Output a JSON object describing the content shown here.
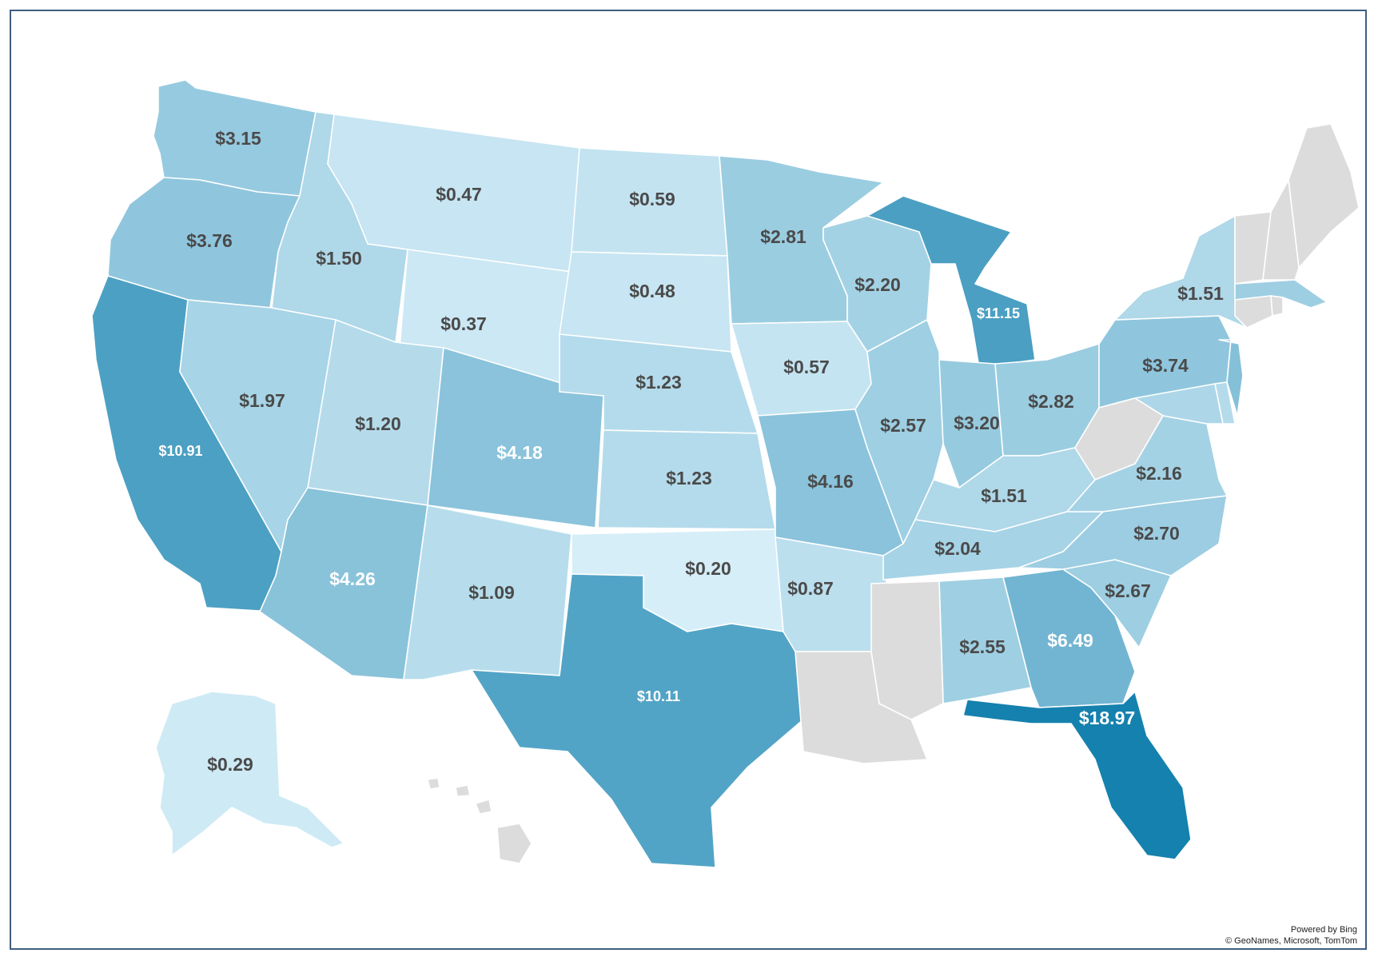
{
  "attribution": {
    "line1": "Powered by Bing",
    "line2": "© GeoNames, Microsoft, TomTom"
  },
  "colors": {
    "no_data": "#dcdcdc",
    "scale_low": "#d6eef8",
    "scale_high": "#1581ae",
    "label_dark": "#4a4a4a",
    "label_light": "#ffffff",
    "border": "#3f5f7f"
  },
  "chart_data": {
    "type": "choropleth",
    "region": "United States",
    "values_unit": "$",
    "states": [
      {
        "state": "WA",
        "label": "$3.15",
        "value": 3.15
      },
      {
        "state": "OR",
        "label": "$3.76",
        "value": 3.76
      },
      {
        "state": "CA",
        "label": "$10.91",
        "value": 10.91
      },
      {
        "state": "ID",
        "label": "$1.50",
        "value": 1.5
      },
      {
        "state": "NV",
        "label": "$1.97",
        "value": 1.97
      },
      {
        "state": "MT",
        "label": "$0.47",
        "value": 0.47
      },
      {
        "state": "WY",
        "label": "$0.37",
        "value": 0.37
      },
      {
        "state": "UT",
        "label": "$1.20",
        "value": 1.2
      },
      {
        "state": "AZ",
        "label": "$4.26",
        "value": 4.26
      },
      {
        "state": "CO",
        "label": "$4.18",
        "value": 4.18
      },
      {
        "state": "NM",
        "label": "$1.09",
        "value": 1.09
      },
      {
        "state": "ND",
        "label": "$0.59",
        "value": 0.59
      },
      {
        "state": "SD",
        "label": "$0.48",
        "value": 0.48
      },
      {
        "state": "NE",
        "label": "$1.23",
        "value": 1.23
      },
      {
        "state": "KS",
        "label": "$1.23",
        "value": 1.23
      },
      {
        "state": "OK",
        "label": "$0.20",
        "value": 0.2
      },
      {
        "state": "TX",
        "label": "$10.11",
        "value": 10.11
      },
      {
        "state": "MN",
        "label": "$2.81",
        "value": 2.81
      },
      {
        "state": "IA",
        "label": "$0.57",
        "value": 0.57
      },
      {
        "state": "MO",
        "label": "$4.16",
        "value": 4.16
      },
      {
        "state": "AR",
        "label": "$0.87",
        "value": 0.87
      },
      {
        "state": "WI",
        "label": "$2.20",
        "value": 2.2
      },
      {
        "state": "IL",
        "label": "$2.57",
        "value": 2.57
      },
      {
        "state": "MI",
        "label": "$11.15",
        "value": 11.15
      },
      {
        "state": "IN",
        "label": "$3.20",
        "value": 3.2
      },
      {
        "state": "OH",
        "label": "$2.82",
        "value": 2.82
      },
      {
        "state": "KY",
        "label": "$1.51",
        "value": 1.51
      },
      {
        "state": "TN",
        "label": "$2.04",
        "value": 2.04
      },
      {
        "state": "AL",
        "label": "$2.55",
        "value": 2.55
      },
      {
        "state": "GA",
        "label": "$6.49",
        "value": 6.49
      },
      {
        "state": "FL",
        "label": "$18.97",
        "value": 18.97
      },
      {
        "state": "SC",
        "label": "$2.67",
        "value": 2.67
      },
      {
        "state": "NC",
        "label": "$2.70",
        "value": 2.7
      },
      {
        "state": "VA",
        "label": "$2.16",
        "value": 2.16
      },
      {
        "state": "PA",
        "label": "$3.74",
        "value": 3.74
      },
      {
        "state": "NY",
        "label": "$1.51",
        "value": 1.51
      },
      {
        "state": "AK",
        "label": "$0.29",
        "value": 0.29
      },
      {
        "state": "NJ",
        "label": "",
        "value": 4.6
      },
      {
        "state": "MA",
        "label": "",
        "value": 2.6
      },
      {
        "state": "MD",
        "label": "",
        "value": 1.6
      },
      {
        "state": "DE",
        "label": "",
        "value": 1.2
      },
      {
        "state": "LA",
        "label": "",
        "value": null
      },
      {
        "state": "MS",
        "label": "",
        "value": null
      },
      {
        "state": "WV",
        "label": "",
        "value": null
      },
      {
        "state": "ME",
        "label": "",
        "value": null
      },
      {
        "state": "VT",
        "label": "",
        "value": null
      },
      {
        "state": "NH",
        "label": "",
        "value": null
      },
      {
        "state": "CT",
        "label": "",
        "value": null
      },
      {
        "state": "RI",
        "label": "",
        "value": null
      },
      {
        "state": "HI",
        "label": "",
        "value": null
      }
    ]
  }
}
